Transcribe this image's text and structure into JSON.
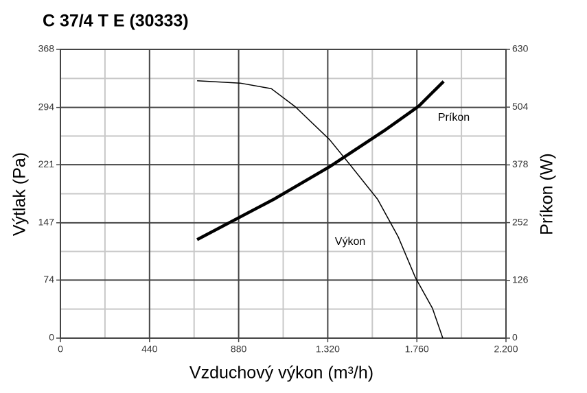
{
  "chart_data": {
    "type": "line",
    "title": "C 37/4 T E (30333)",
    "x_label": "Vzduchový výkon (m³/h)",
    "y_label": "Výtlak (Pa)",
    "y2_label": "Príkon (W)",
    "xlim": [
      0,
      2200
    ],
    "xticks": [
      0,
      440,
      880,
      {
        "value": 1320,
        "label": "1.320"
      },
      {
        "value": 1760,
        "label": "1.760"
      },
      {
        "value": 2200,
        "label": "2.200"
      }
    ],
    "ylim": [
      0,
      368
    ],
    "yticks": [
      0,
      74,
      147,
      221,
      294,
      368
    ],
    "y2lim": [
      0,
      630
    ],
    "y2ticks": [
      0,
      126,
      252,
      378,
      504,
      630
    ],
    "grid": true,
    "series": [
      {
        "name": "Výkon",
        "color": "#000000",
        "axis": "y",
        "x": [
          675,
          888,
          1041,
          1159,
          1329,
          1430,
          1566,
          1668,
          1753,
          1837,
          1888
        ],
        "values": [
          328,
          325,
          318,
          295,
          253,
          221,
          177,
          129,
          77,
          38,
          0
        ]
      },
      {
        "name": "Príkon",
        "color": "#000000",
        "axis": "y2",
        "x": [
          675,
          1058,
          1329,
          1600,
          1769,
          1837,
          1892
        ],
        "values": [
          215,
          304,
          374,
          453,
          506,
          536,
          560
        ]
      }
    ]
  }
}
